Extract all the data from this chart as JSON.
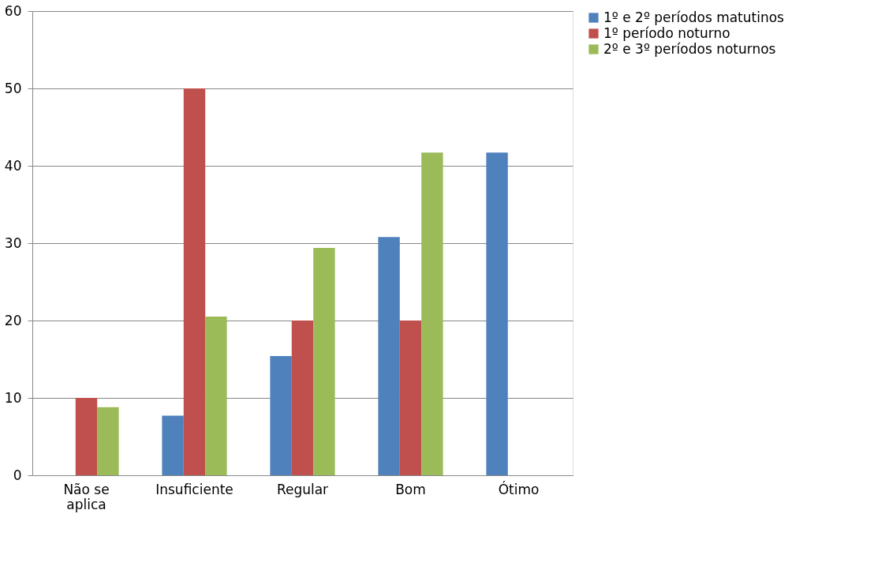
{
  "chart_data": {
    "type": "bar",
    "categories": [
      "Não se aplica",
      "Insuficiente",
      "Regular",
      "Bom",
      "Ótimo"
    ],
    "series": [
      {
        "name": "1º e 2º períodos matutinos",
        "color": "#4f81bd",
        "values": [
          0,
          7.7,
          15.4,
          30.8,
          41.7
        ]
      },
      {
        "name": "1º período noturno",
        "color": "#c0504d",
        "values": [
          10,
          50,
          20,
          20,
          0
        ]
      },
      {
        "name": "2º e 3º períodos noturnos",
        "color": "#9bbb59",
        "values": [
          8.8,
          20.5,
          29.4,
          41.7,
          0
        ]
      }
    ],
    "ylim": [
      0,
      60
    ],
    "yticks": [
      0,
      10,
      20,
      30,
      40,
      50,
      60
    ],
    "grid": "y",
    "legend": "right"
  }
}
